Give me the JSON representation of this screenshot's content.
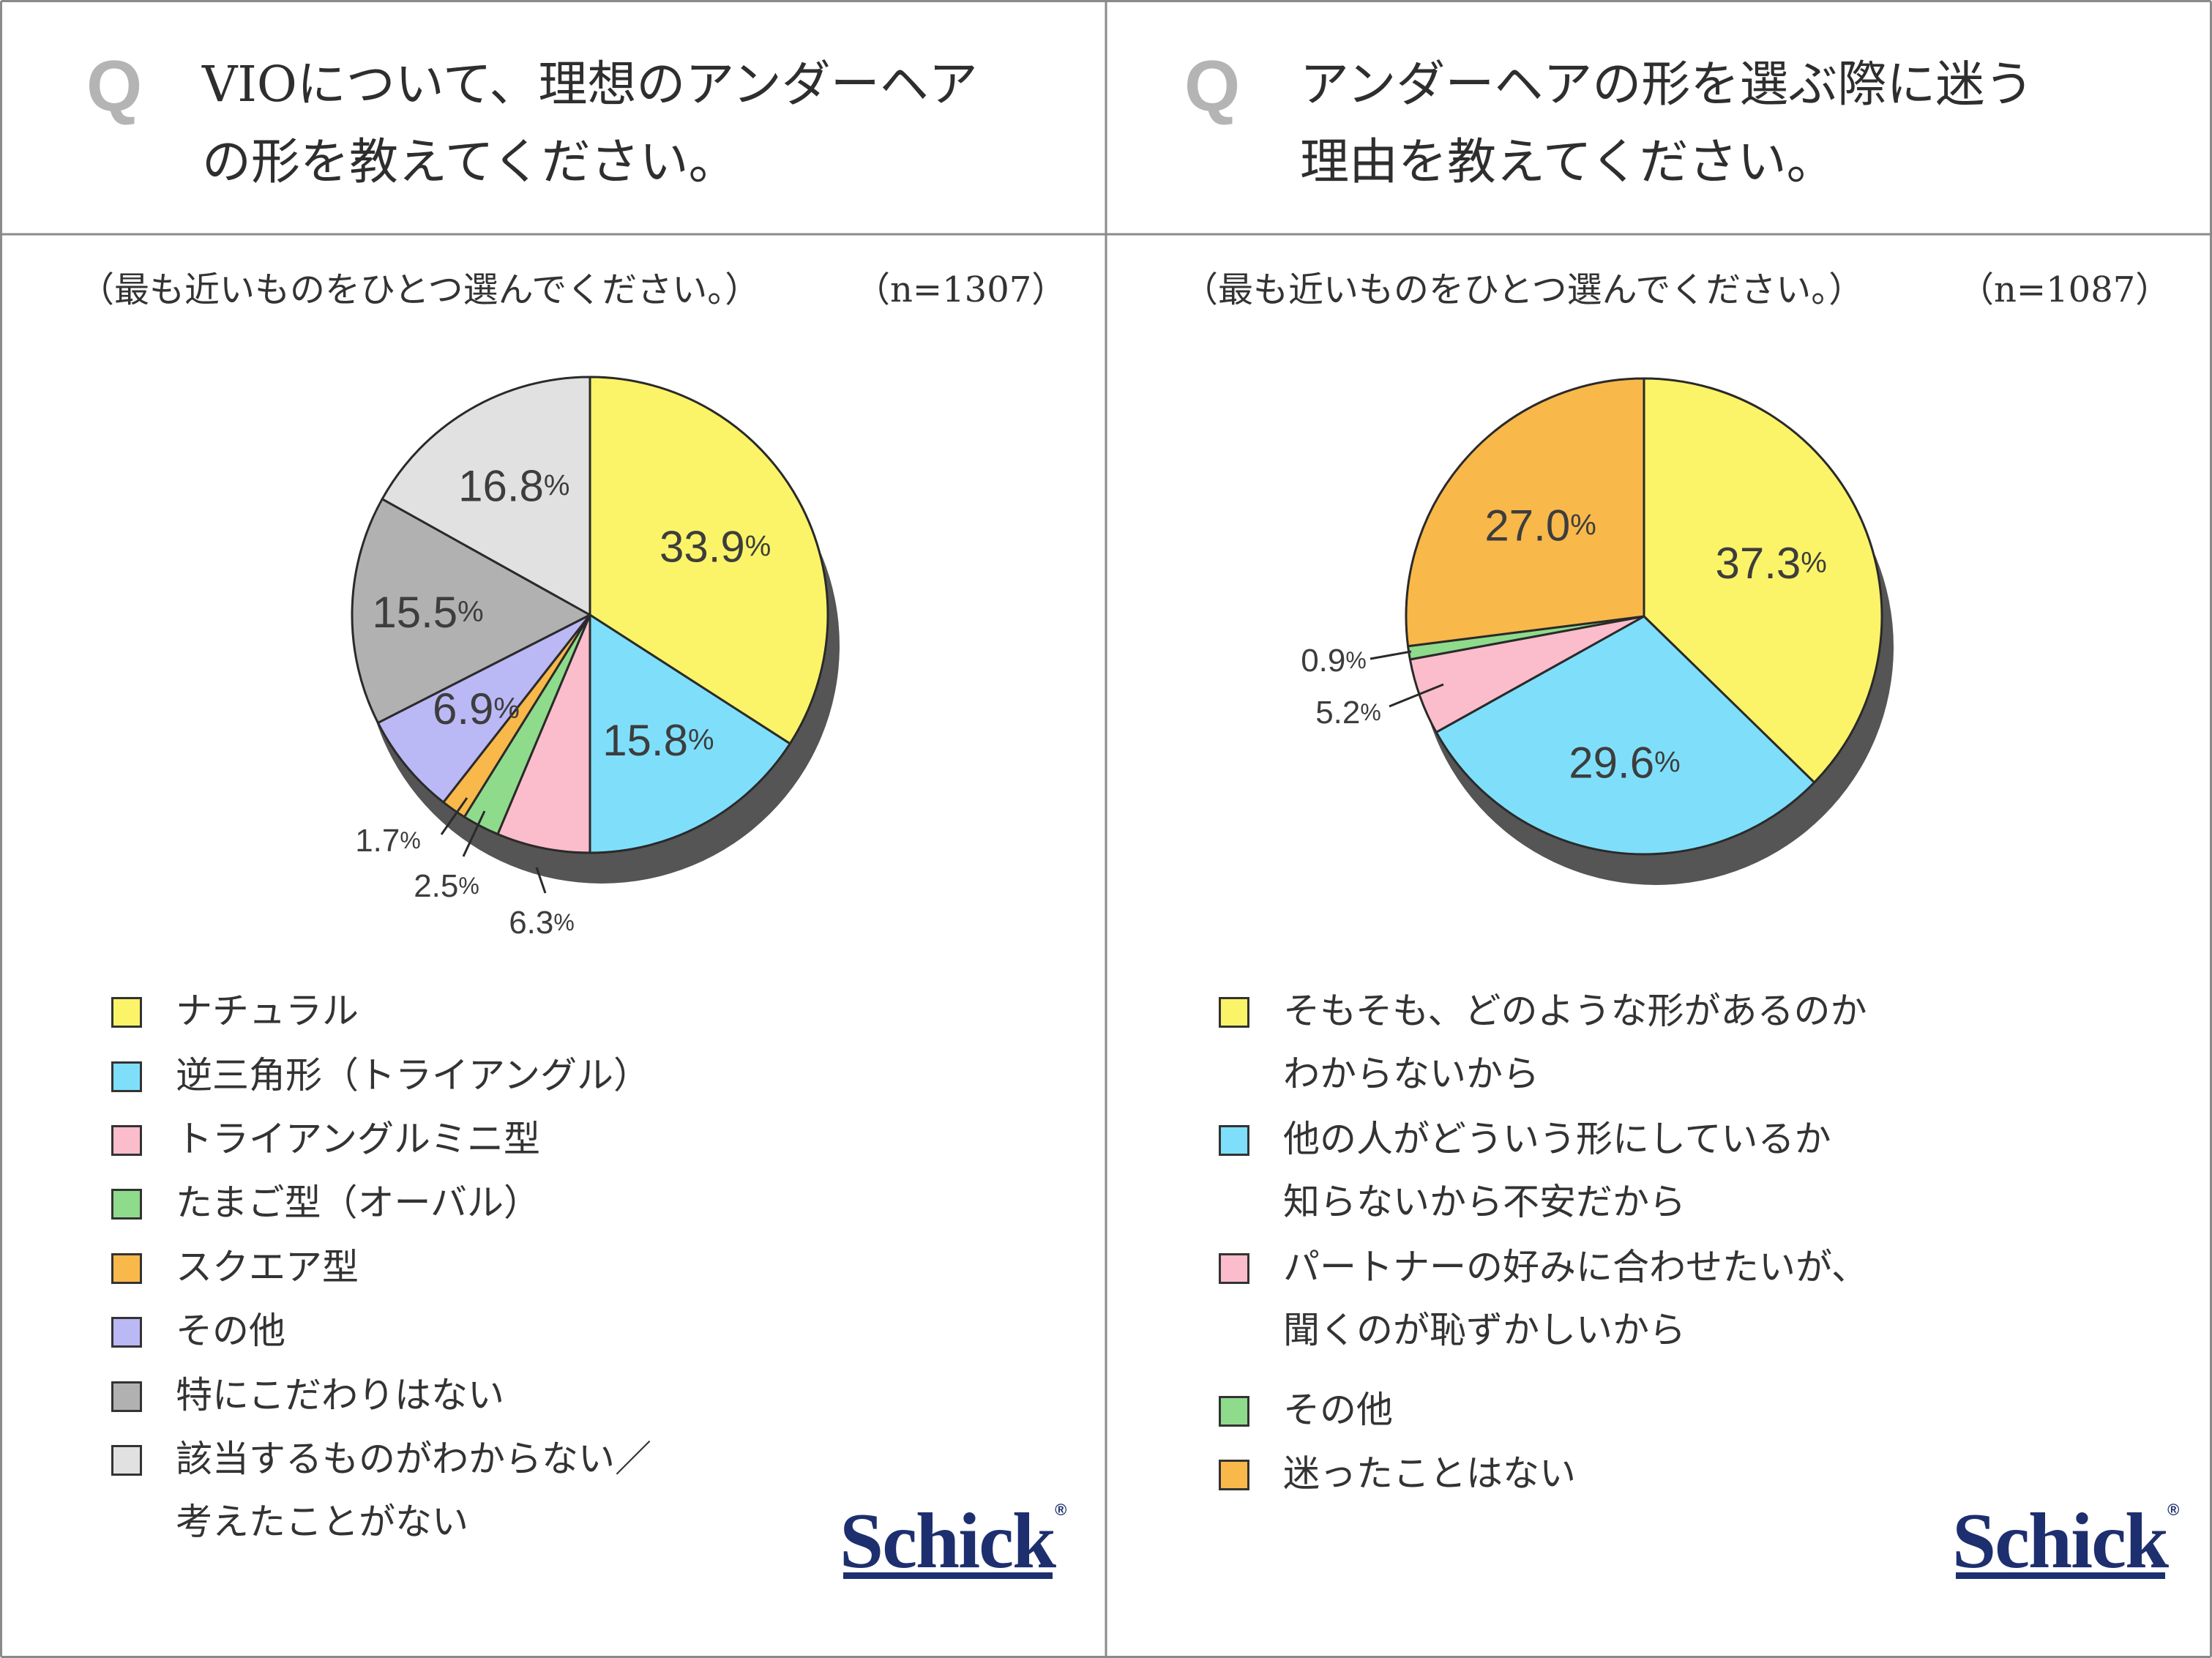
{
  "charts": [
    {
      "question": {
        "mark": "Q",
        "lines": [
          "VIOについて、理想のアンダーヘア",
          "の形を教えてください。"
        ]
      },
      "note": "（最も近いものをひとつ選んでください。）",
      "n": "（n=1307）",
      "legend": [
        {
          "lines": [
            "ナチュラル"
          ],
          "color": "#fbf468"
        },
        {
          "lines": [
            "逆三角形（トライアングル）"
          ],
          "color": "#7fdffb"
        },
        {
          "lines": [
            "トライアングルミニ型"
          ],
          "color": "#fbbdcb"
        },
        {
          "lines": [
            "たまご型（オーバル）"
          ],
          "color": "#8fdb8c"
        },
        {
          "lines": [
            "スクエア型"
          ],
          "color": "#f8b84a"
        },
        {
          "lines": [
            "その他"
          ],
          "color": "#bab8f5"
        },
        {
          "lines": [
            "特にこだわりはない"
          ],
          "color": "#b1b1b1"
        },
        {
          "lines": [
            "該当するものがわからない／",
            "考えたことがない"
          ],
          "color": "#e1e1e1"
        }
      ],
      "logo": "Schick",
      "logo_mark": "®"
    },
    {
      "question": {
        "mark": "Q",
        "lines": [
          "アンダーヘアの形を選ぶ際に迷う",
          "理由を教えてください。"
        ]
      },
      "note": "（最も近いものをひとつ選んでください。）",
      "n": "（n=1087）",
      "legend": [
        {
          "lines": [
            "そもそも、どのような形があるのか",
            "わからないから"
          ],
          "color": "#fbf468"
        },
        {
          "lines": [
            "他の人がどういう形にしているか",
            "知らないから不安だから"
          ],
          "color": "#7fdffb"
        },
        {
          "lines": [
            "パートナーの好みに合わせたいが、",
            "聞くのが恥ずかしいから"
          ],
          "color": "#fbbdcb"
        },
        {
          "lines": [
            "その他"
          ],
          "color": "#8fdb8c"
        },
        {
          "lines": [
            "迷ったことはない"
          ],
          "color": "#f8b84a"
        }
      ],
      "logo": "Schick",
      "logo_mark": "®"
    }
  ],
  "chart_data": [
    {
      "type": "pie",
      "title": "VIOについて、理想のアンダーヘアの形を教えてください。",
      "n": 1307,
      "unit": "%",
      "categories": [
        "ナチュラル",
        "逆三角形（トライアングル）",
        "トライアングルミニ型",
        "たまご型（オーバル）",
        "スクエア型",
        "その他",
        "特にこだわりはない",
        "該当するものがわからない／考えたことがない"
      ],
      "values": [
        33.9,
        15.8,
        6.3,
        2.5,
        1.7,
        6.9,
        15.5,
        16.8
      ],
      "labels": [
        "33.9",
        "15.8",
        "6.3",
        "2.5",
        "1.7",
        "6.9",
        "15.5",
        "16.8"
      ],
      "start": "12 o'clock",
      "direction": "clockwise"
    },
    {
      "type": "pie",
      "title": "アンダーヘアの形を選ぶ際に迷う理由を教えてください。",
      "n": 1087,
      "unit": "%",
      "categories": [
        "そもそも、どのような形があるのかわからないから",
        "他の人がどういう形にしているか知らないから不安だから",
        "パートナーの好みに合わせたいが、聞くのが恥ずかしいから",
        "その他",
        "迷ったことはない"
      ],
      "values": [
        37.3,
        29.6,
        5.2,
        0.9,
        27.0
      ],
      "labels": [
        "37.3",
        "29.6",
        "5.2",
        "0.9",
        "27.0"
      ],
      "start": "12 o'clock",
      "direction": "clockwise"
    }
  ]
}
